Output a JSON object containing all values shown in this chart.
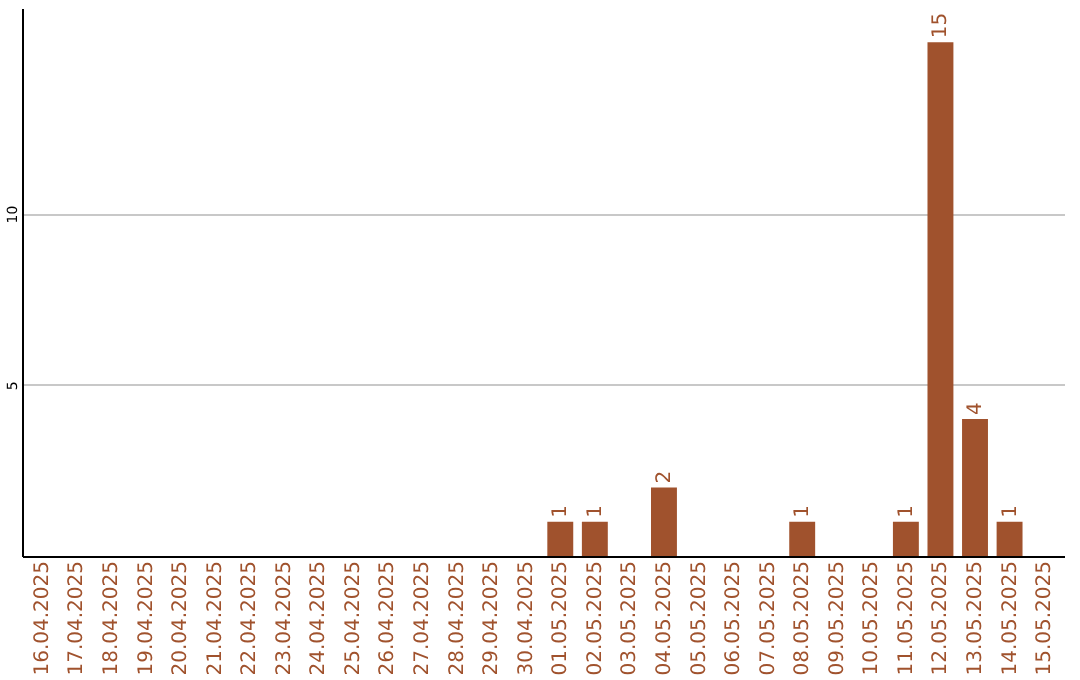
{
  "chart_data": {
    "type": "bar",
    "categories": [
      "16.04.2025",
      "17.04.2025",
      "18.04.2025",
      "19.04.2025",
      "20.04.2025",
      "21.04.2025",
      "22.04.2025",
      "23.04.2025",
      "24.04.2025",
      "25.04.2025",
      "26.04.2025",
      "27.04.2025",
      "28.04.2025",
      "29.04.2025",
      "30.04.2025",
      "01.05.2025",
      "02.05.2025",
      "03.05.2025",
      "04.05.2025",
      "05.05.2025",
      "06.05.2025",
      "07.05.2025",
      "08.05.2025",
      "09.05.2025",
      "10.05.2025",
      "11.05.2025",
      "12.05.2025",
      "13.05.2025",
      "14.05.2025",
      "15.05.2025"
    ],
    "values": [
      0,
      0,
      0,
      0,
      0,
      0,
      0,
      0,
      0,
      0,
      0,
      0,
      0,
      0,
      0,
      1,
      1,
      0,
      2,
      0,
      0,
      0,
      1,
      0,
      0,
      1,
      15,
      4,
      1,
      0
    ],
    "value_labels": [
      null,
      null,
      null,
      null,
      null,
      null,
      null,
      null,
      null,
      null,
      null,
      null,
      null,
      null,
      null,
      "1",
      "1",
      null,
      "2",
      null,
      null,
      null,
      "1",
      null,
      null,
      "1",
      "15",
      "4",
      "1",
      null
    ],
    "color": "#a0522d",
    "ylim": [
      0,
      16
    ],
    "yticks": [
      5,
      10
    ],
    "grid": "y"
  }
}
